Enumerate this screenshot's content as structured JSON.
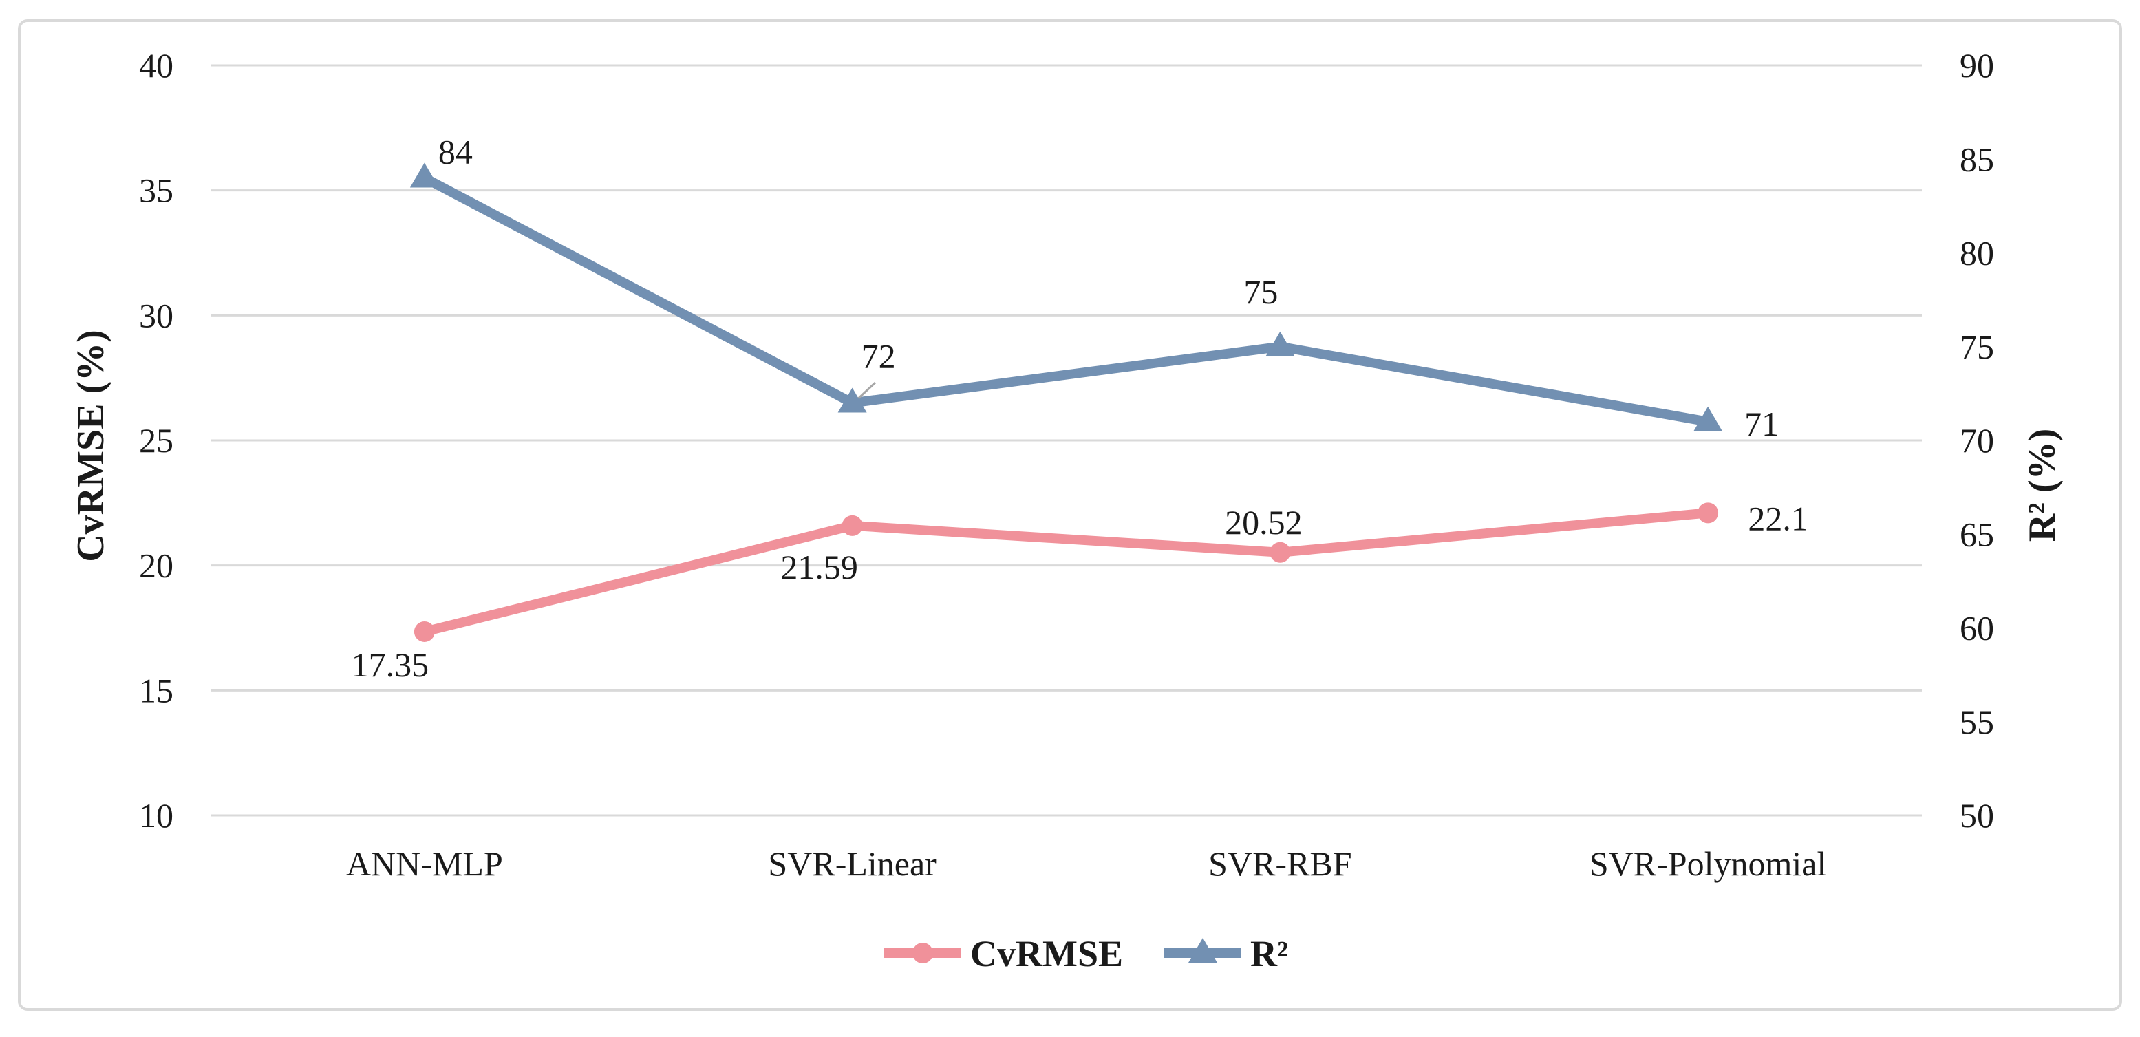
{
  "figure": {
    "background": "#ffffff",
    "border_color": "#d9d9d9"
  },
  "chart_data": {
    "type": "line",
    "title": "",
    "categories": [
      "ANN-MLP",
      "SVR-Linear",
      "SVR-RBF",
      "SVR-Polynomial"
    ],
    "series": [
      {
        "name": "CvRMSE",
        "axis": "left",
        "color": "#f0919a",
        "marker": "circle",
        "values": [
          17.35,
          21.59,
          20.52,
          22.1
        ],
        "labels": [
          "17.35",
          "21.59",
          "20.52",
          "22.1"
        ],
        "label_offsets": [
          [
            -50,
            48
          ],
          [
            -48,
            60
          ],
          [
            -24,
            -44
          ],
          [
            102,
            8
          ]
        ]
      },
      {
        "name": "R²",
        "axis": "right",
        "color": "#7290b2",
        "marker": "triangle",
        "values": [
          84,
          72,
          75,
          71
        ],
        "labels": [
          "84",
          "72",
          "75",
          "71"
        ],
        "label_offsets": [
          [
            45,
            -38
          ],
          [
            38,
            -68
          ],
          [
            -28,
            -80
          ],
          [
            78,
            3
          ]
        ],
        "leader_lines": [
          {
            "point": 1,
            "from": [
              1272,
              556
            ],
            "to": [
              1242,
              584
            ]
          }
        ]
      }
    ],
    "left_axis": {
      "title": "CvRMSE (%)",
      "min": 10,
      "max": 40,
      "ticks": [
        40,
        35,
        30,
        25,
        20,
        15,
        10
      ]
    },
    "right_axis": {
      "title": "R² (%)",
      "min": 50,
      "max": 90,
      "ticks": [
        90,
        85,
        80,
        75,
        70,
        65,
        60,
        55,
        50
      ]
    },
    "legend": {
      "position": "bottom",
      "entries": [
        "CvRMSE",
        "R²"
      ]
    },
    "grid": true,
    "gridline_color": "#d9d9d9",
    "leader_line_color": "#a6a6a6",
    "text_color": "#1a1a1a"
  }
}
